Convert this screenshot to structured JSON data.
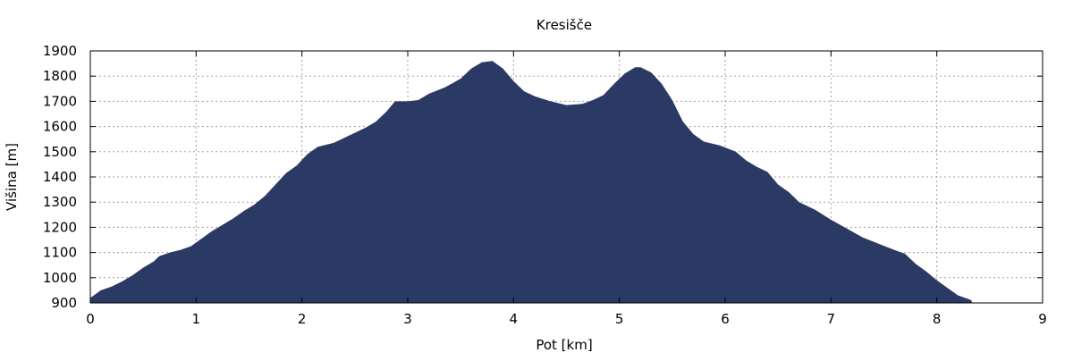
{
  "chart_data": {
    "type": "area",
    "title": "Kresišče",
    "xlabel": "Pot [km]",
    "ylabel": "Višina [m]",
    "xlim": [
      0,
      9
    ],
    "ylim": [
      900,
      1900
    ],
    "xticks": [
      "0",
      "1",
      "2",
      "3",
      "4",
      "5",
      "6",
      "7",
      "8",
      "9"
    ],
    "yticks": [
      "900",
      "1000",
      "1100",
      "1200",
      "1300",
      "1400",
      "1500",
      "1600",
      "1700",
      "1800",
      "1900"
    ],
    "grid": true,
    "fill_color": "#2b3a64",
    "x": [
      0,
      0.1,
      0.2,
      0.3,
      0.4,
      0.5,
      0.6,
      0.65,
      0.75,
      0.85,
      0.95,
      1.05,
      1.15,
      1.25,
      1.35,
      1.45,
      1.55,
      1.65,
      1.75,
      1.85,
      1.95,
      2.05,
      2.15,
      2.3,
      2.4,
      2.5,
      2.6,
      2.7,
      2.8,
      2.88,
      3.0,
      3.1,
      3.2,
      3.35,
      3.5,
      3.6,
      3.7,
      3.8,
      3.9,
      4.0,
      4.1,
      4.2,
      4.35,
      4.5,
      4.65,
      4.75,
      4.85,
      4.95,
      5.05,
      5.15,
      5.2,
      5.3,
      5.4,
      5.5,
      5.6,
      5.7,
      5.8,
      5.95,
      6.1,
      6.2,
      6.3,
      6.4,
      6.5,
      6.6,
      6.7,
      6.85,
      7.0,
      7.15,
      7.3,
      7.45,
      7.6,
      7.7,
      7.8,
      7.9,
      8.0,
      8.1,
      8.2,
      8.3,
      8.33
    ],
    "y": [
      920,
      950,
      965,
      985,
      1010,
      1040,
      1065,
      1085,
      1100,
      1110,
      1125,
      1155,
      1185,
      1210,
      1235,
      1265,
      1290,
      1325,
      1370,
      1415,
      1445,
      1490,
      1520,
      1535,
      1555,
      1575,
      1595,
      1620,
      1660,
      1700,
      1700,
      1705,
      1730,
      1755,
      1790,
      1830,
      1855,
      1860,
      1830,
      1780,
      1740,
      1720,
      1700,
      1685,
      1690,
      1705,
      1725,
      1770,
      1810,
      1835,
      1835,
      1815,
      1770,
      1705,
      1620,
      1570,
      1540,
      1525,
      1500,
      1465,
      1440,
      1420,
      1370,
      1340,
      1300,
      1270,
      1230,
      1195,
      1160,
      1135,
      1110,
      1095,
      1055,
      1025,
      990,
      960,
      930,
      915,
      910
    ]
  }
}
